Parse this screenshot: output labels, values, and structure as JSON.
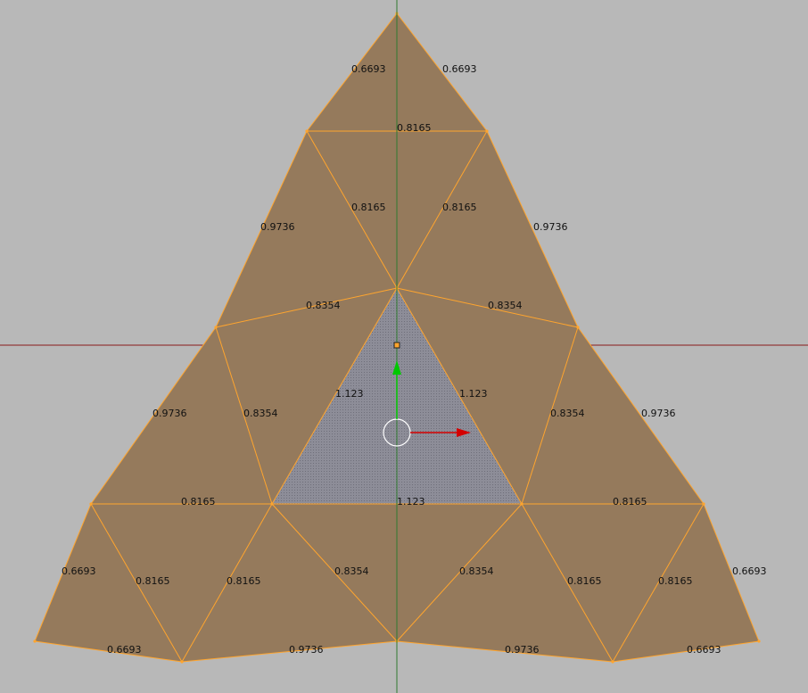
{
  "viewport": {
    "background": "#b8b8b8",
    "face_color": "#957a5c",
    "selected_face_color": "#8c8c96",
    "edge_color": "#ffa52e",
    "x_axis_color": "#8a1a1a",
    "y_axis_color": "#2f7a2f",
    "gizmo_x_color": "#d40000",
    "gizmo_y_color": "#00c800"
  },
  "edge_labels": [
    "0.6693",
    "0.6693",
    "0.8165",
    "0.8165",
    "0.8165",
    "0.9736",
    "0.9736",
    "0.8354",
    "0.8354",
    "1.123",
    "1.123",
    "1.123",
    "0.9736",
    "0.8354",
    "0.8354",
    "0.9736",
    "0.8165",
    "0.8165",
    "0.6693",
    "0.8165",
    "0.8165",
    "0.8354",
    "0.8354",
    "0.8165",
    "0.8165",
    "0.6693",
    "0.6693",
    "0.9736",
    "0.9736",
    "0.6693"
  ]
}
